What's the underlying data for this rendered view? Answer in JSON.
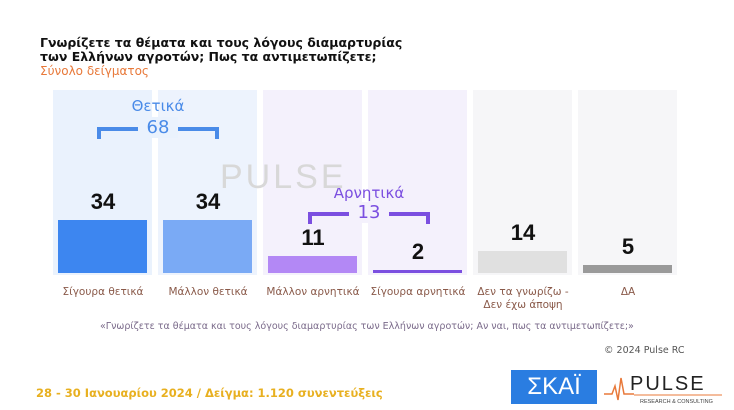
{
  "title": "Γνωρίζετε τα θέματα και τους λόγους διαμαρτυρίας των Ελλήνων αγροτών; Πως τα αντιμετωπίζετε;",
  "subtitle": "Σύνολο δείγματος",
  "chart_data": {
    "type": "bar",
    "categories": [
      "Σίγουρα θετικά",
      "Μάλλον θετικά",
      "Μάλλον αρνητικά",
      "Σίγουρα αρνητικά",
      "Δεν τα γνωρίζω - Δεν έχω άποψη",
      "ΔΑ"
    ],
    "values": [
      34,
      34,
      11,
      2,
      14,
      5
    ],
    "colors": [
      "#3d86f0",
      "#7aaaf5",
      "#b388f5",
      "#7b4fe0",
      "#e0e0e0",
      "#9a9a9a"
    ],
    "column_backgrounds": [
      "#eaf2fd",
      "#edf3fd",
      "#f4f1fc",
      "#f4f1fc",
      "#f6f6f8",
      "#f6f6f8"
    ],
    "ylim": [
      0,
      40
    ],
    "groups": [
      {
        "name": "Θετικά",
        "total": "68",
        "color": "#4a8be8"
      },
      {
        "name": "Αρνητικά",
        "total": "13",
        "color": "#7b4fe0"
      }
    ]
  },
  "watermark": "PULSE",
  "note": "«Γνωρίζετε τα θέματα και τους λόγους διαμαρτυρίας των Ελλήνων αγροτών; Αν ναι, πως τα αντιμετωπίζετε;»",
  "copyright": "© 2024 Pulse RC",
  "footer": "28 - 30  Ιανουαρίου  2024  /  Δείγμα:  1.120 συνεντεύξεις",
  "logos": {
    "skai": "ΣΚΑΪ",
    "pulse": "PULSE",
    "pulse_tag": "RESEARCH & CONSULTING"
  }
}
